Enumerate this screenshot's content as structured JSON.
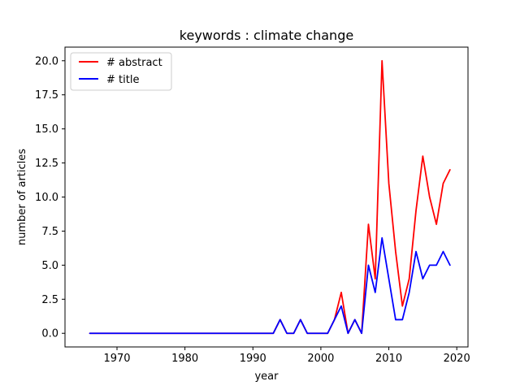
{
  "chart_data": {
    "type": "line",
    "title": "keywords : climate change",
    "xlabel": "year",
    "ylabel": "number of articles",
    "xlim": [
      1962.35,
      2021.65
    ],
    "ylim": [
      -1.0,
      21.0
    ],
    "xticks": [
      1970,
      1980,
      1990,
      2000,
      2010,
      2020
    ],
    "yticks": [
      0.0,
      2.5,
      5.0,
      7.5,
      10.0,
      12.5,
      15.0,
      17.5,
      20.0
    ],
    "ytick_labels": [
      "0.0",
      "2.5",
      "5.0",
      "7.5",
      "10.0",
      "12.5",
      "15.0",
      "17.5",
      "20.0"
    ],
    "grid": false,
    "legend_position": "top-left",
    "x": [
      1966,
      1967,
      1968,
      1969,
      1970,
      1971,
      1972,
      1973,
      1974,
      1975,
      1976,
      1977,
      1978,
      1979,
      1980,
      1981,
      1982,
      1983,
      1984,
      1985,
      1986,
      1987,
      1988,
      1989,
      1990,
      1991,
      1992,
      1993,
      1994,
      1995,
      1996,
      1997,
      1998,
      1999,
      2000,
      2001,
      2002,
      2003,
      2004,
      2005,
      2006,
      2007,
      2008,
      2009,
      2010,
      2011,
      2012,
      2013,
      2014,
      2015,
      2016,
      2017,
      2018,
      2019
    ],
    "series": [
      {
        "name": "# abstract",
        "color": "#ff0000",
        "values": [
          0,
          0,
          0,
          0,
          0,
          0,
          0,
          0,
          0,
          0,
          0,
          0,
          0,
          0,
          0,
          0,
          0,
          0,
          0,
          0,
          0,
          0,
          0,
          0,
          0,
          0,
          0,
          0,
          1,
          0,
          0,
          1,
          0,
          0,
          0,
          0,
          1,
          3,
          0,
          1,
          0,
          8,
          4,
          20,
          11,
          6,
          2,
          4,
          9,
          13,
          10,
          8,
          11,
          12
        ]
      },
      {
        "name": "# title",
        "color": "#0000ff",
        "values": [
          0,
          0,
          0,
          0,
          0,
          0,
          0,
          0,
          0,
          0,
          0,
          0,
          0,
          0,
          0,
          0,
          0,
          0,
          0,
          0,
          0,
          0,
          0,
          0,
          0,
          0,
          0,
          0,
          1,
          0,
          0,
          1,
          0,
          0,
          0,
          0,
          1,
          2,
          0,
          1,
          0,
          5,
          3,
          7,
          4,
          1,
          1,
          3,
          6,
          4,
          5,
          5,
          6,
          5
        ]
      }
    ]
  }
}
